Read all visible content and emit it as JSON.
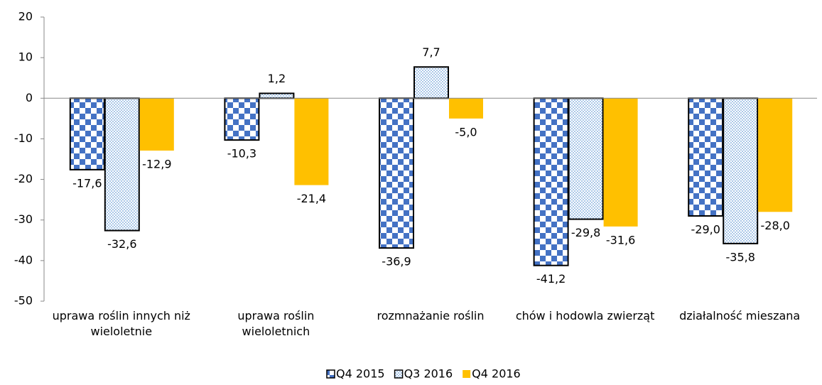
{
  "chart_data": {
    "type": "bar",
    "categories": [
      "uprawa roślin innych niż wieloletnie",
      "uprawa roślin wieloletnich",
      "rozmnażanie roślin",
      "chów i hodowla zwierząt",
      "działalność mieszana"
    ],
    "series": [
      {
        "name": "Q4 2015",
        "color": "#4472c4",
        "pattern": "checker",
        "values": [
          -17.6,
          -10.3,
          -36.9,
          -41.2,
          -29.0
        ],
        "value_labels": [
          "-17,6",
          "-10,3",
          "-36,9",
          "-41,2",
          "-29,0"
        ]
      },
      {
        "name": "Q3 2016",
        "color": "#9dc3e6",
        "pattern": "dots",
        "values": [
          -32.6,
          1.2,
          7.7,
          -29.8,
          -35.8
        ],
        "value_labels": [
          "-32,6",
          "1,2",
          "7,7",
          "-29,8",
          "-35,8"
        ]
      },
      {
        "name": "Q4 2016",
        "color": "#ffc000",
        "pattern": "solid",
        "values": [
          -12.9,
          -21.4,
          -5.0,
          -31.6,
          -28.0
        ],
        "value_labels": [
          "-12,9",
          "-21,4",
          "-5,0",
          "-31,6",
          "-28,0"
        ]
      }
    ],
    "ylim": [
      -50,
      20
    ],
    "yticks": [
      -50,
      -40,
      -30,
      -20,
      -10,
      0,
      10,
      20
    ],
    "grid": false,
    "legend": "bottom"
  }
}
